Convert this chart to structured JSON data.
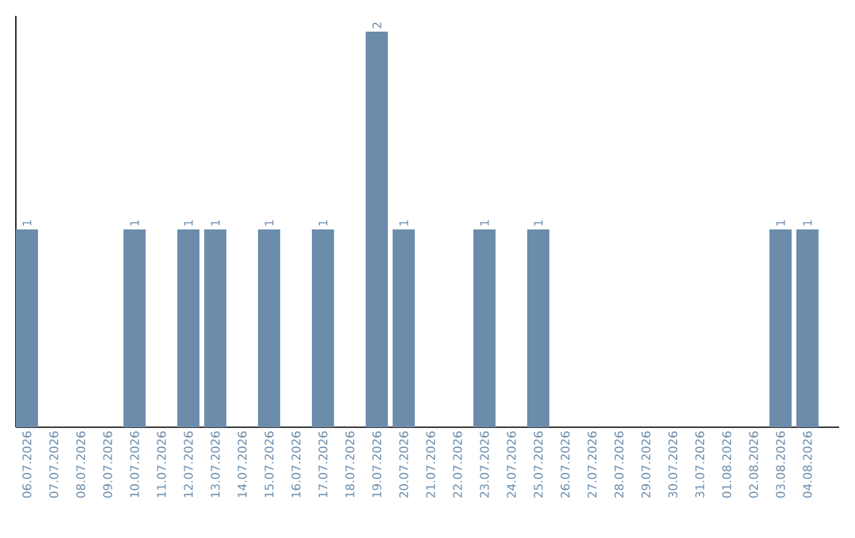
{
  "chart_data": {
    "type": "bar",
    "categories": [
      "06.07.2026",
      "07.07.2026",
      "08.07.2026",
      "09.07.2026",
      "10.07.2026",
      "11.07.2026",
      "12.07.2026",
      "13.07.2026",
      "14.07.2026",
      "15.07.2026",
      "16.07.2026",
      "17.07.2026",
      "18.07.2026",
      "19.07.2026",
      "20.07.2026",
      "21.07.2026",
      "22.07.2026",
      "23.07.2026",
      "24.07.2026",
      "25.07.2026",
      "26.07.2026",
      "27.07.2026",
      "28.07.2026",
      "29.07.2026",
      "30.07.2026",
      "31.07.2026",
      "01.08.2026",
      "02.08.2026",
      "03.08.2026",
      "04.08.2026"
    ],
    "values": [
      1,
      0,
      0,
      0,
      1,
      0,
      1,
      1,
      0,
      1,
      0,
      1,
      0,
      2,
      1,
      0,
      0,
      1,
      0,
      1,
      0,
      0,
      0,
      0,
      0,
      0,
      0,
      0,
      1,
      1
    ],
    "value_labels": [
      "1",
      null,
      null,
      null,
      "1",
      null,
      "1",
      "1",
      null,
      "1",
      null,
      "1",
      null,
      "2",
      "1",
      null,
      null,
      "1",
      null,
      "1",
      null,
      null,
      null,
      null,
      null,
      null,
      null,
      null,
      "1",
      "1"
    ],
    "color": "#6b8cab",
    "ylim": [
      0,
      2.08
    ],
    "tick_labels": "x"
  }
}
